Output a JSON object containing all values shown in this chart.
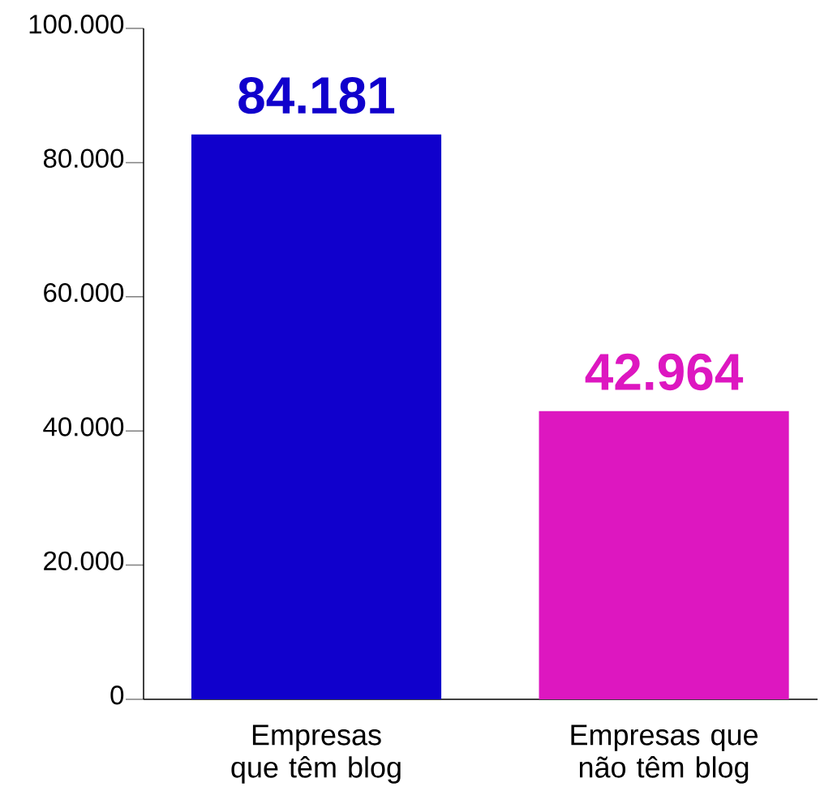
{
  "chart_data": {
    "type": "bar",
    "categories": [
      "Empresas que têm blog",
      "Empresas que não têm blog"
    ],
    "values": [
      84181,
      42964
    ],
    "value_labels": [
      "84.181",
      "42.964"
    ],
    "colors": [
      "#1000cc",
      "#dd17c0"
    ],
    "ylim": [
      0,
      100000
    ],
    "yticks": [
      {
        "value": 0,
        "label": "0"
      },
      {
        "value": 20000,
        "label": "20.000"
      },
      {
        "value": 40000,
        "label": "40.000"
      },
      {
        "value": 60000,
        "label": "60.000"
      },
      {
        "value": 80000,
        "label": "80.000"
      },
      {
        "value": 100000,
        "label": "100.000"
      }
    ]
  }
}
